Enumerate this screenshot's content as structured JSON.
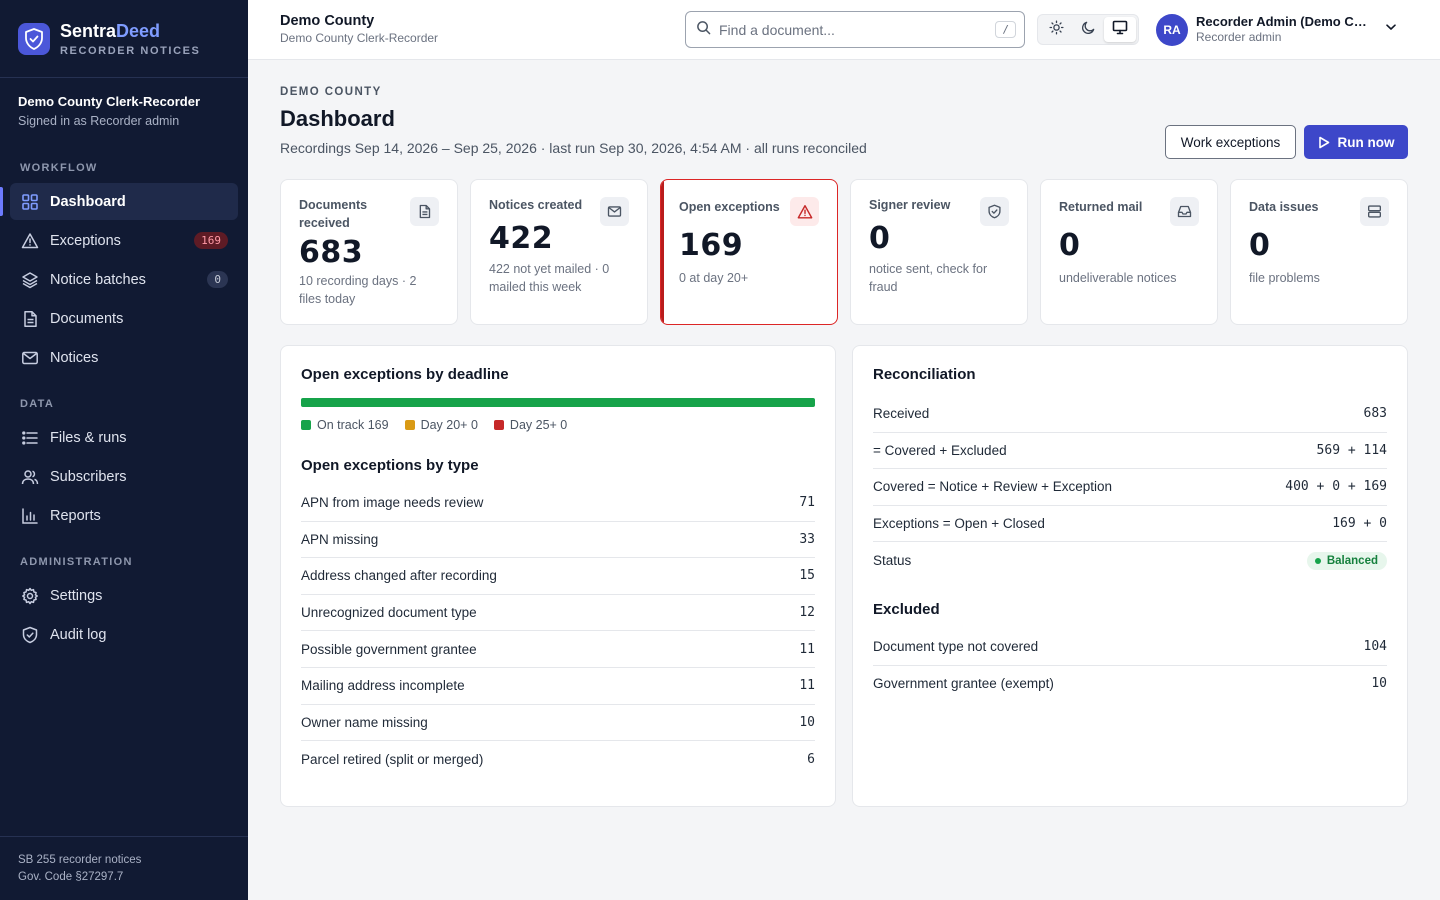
{
  "brand": {
    "name_part1": "Sentra",
    "name_part2": "Deed",
    "subtitle": "RECORDER NOTICES"
  },
  "org": {
    "name": "Demo County Clerk-Recorder",
    "signed_in": "Signed in as Recorder admin"
  },
  "nav": {
    "sections": [
      "WORKFLOW",
      "DATA",
      "ADMINISTRATION"
    ],
    "items": [
      {
        "label": "Dashboard",
        "icon": "grid-icon",
        "active": true
      },
      {
        "label": "Exceptions",
        "icon": "warning-icon",
        "badge": "169"
      },
      {
        "label": "Notice batches",
        "icon": "layers-icon",
        "badge": "0"
      },
      {
        "label": "Documents",
        "icon": "document-icon"
      },
      {
        "label": "Notices",
        "icon": "mail-icon"
      },
      {
        "label": "Files & runs",
        "icon": "list-icon"
      },
      {
        "label": "Subscribers",
        "icon": "users-icon"
      },
      {
        "label": "Reports",
        "icon": "bar-chart-icon"
      },
      {
        "label": "Settings",
        "icon": "gear-icon"
      },
      {
        "label": "Audit log",
        "icon": "shield-icon"
      }
    ]
  },
  "footer": {
    "line1": "SB 255 recorder notices",
    "line2": "Gov. Code §27297.7"
  },
  "topbar": {
    "title": "Demo County",
    "subtitle": "Demo County Clerk-Recorder",
    "search_placeholder": "Find a document...",
    "search_shortcut": "/",
    "user_initials": "RA",
    "user_name": "Recorder Admin (Demo County)",
    "user_role": "Recorder admin"
  },
  "page": {
    "eyebrow": "DEMO COUNTY",
    "title": "Dashboard",
    "subtitle": "Recordings Sep 14, 2026 – Sep 25, 2026 · last run Sep 30, 2026, 4:54 AM · all runs reconciled",
    "btn_secondary": "Work exceptions",
    "btn_primary": "Run now"
  },
  "stats": [
    {
      "label": "Documents received",
      "value": "683",
      "desc": "10 recording days · 2 files today",
      "icon": "document-icon"
    },
    {
      "label": "Notices created",
      "value": "422",
      "desc": "422 not yet mailed · 0 mailed this week",
      "icon": "mail-icon"
    },
    {
      "label": "Open exceptions",
      "value": "169",
      "desc": "0 at day 20+",
      "icon": "warning-icon",
      "alert": true
    },
    {
      "label": "Signer review",
      "value": "0",
      "desc": "notice sent, check for fraud",
      "icon": "shield-icon"
    },
    {
      "label": "Returned mail",
      "value": "0",
      "desc": "undeliverable notices",
      "icon": "inbox-icon"
    },
    {
      "label": "Data issues",
      "value": "0",
      "desc": "file problems",
      "icon": "database-icon"
    }
  ],
  "deadline": {
    "title": "Open exceptions by deadline",
    "segments": [
      {
        "label": "On track",
        "value": 169,
        "color": "#16a34a"
      },
      {
        "label": "Day 20+",
        "value": 0,
        "color": "#d99a15"
      },
      {
        "label": "Day 25+",
        "value": 0,
        "color": "#c62828"
      }
    ],
    "legend_texts": [
      "On track 169",
      "Day 20+ 0",
      "Day 25+ 0"
    ]
  },
  "by_type": {
    "title": "Open exceptions by type",
    "rows": [
      {
        "label": "APN from image needs review",
        "value": "71"
      },
      {
        "label": "APN missing",
        "value": "33"
      },
      {
        "label": "Address changed after recording",
        "value": "15"
      },
      {
        "label": "Unrecognized document type",
        "value": "12"
      },
      {
        "label": "Possible government grantee",
        "value": "11"
      },
      {
        "label": "Mailing address incomplete",
        "value": "11"
      },
      {
        "label": "Owner name missing",
        "value": "10"
      },
      {
        "label": "Parcel retired (split or merged)",
        "value": "6"
      }
    ]
  },
  "reconciliation": {
    "title": "Reconciliation",
    "rows": [
      {
        "label": "Received",
        "value": "683"
      },
      {
        "label": "= Covered + Excluded",
        "value": "569 + 114"
      },
      {
        "label": "Covered = Notice + Review + Exception",
        "value": "400 + 0 + 169"
      },
      {
        "label": "Exceptions = Open + Closed",
        "value": "169 + 0"
      }
    ],
    "status_label": "Status",
    "status_value": "Balanced"
  },
  "excluded": {
    "title": "Excluded",
    "rows": [
      {
        "label": "Document type not covered",
        "value": "104"
      },
      {
        "label": "Government grantee (exempt)",
        "value": "10"
      }
    ]
  }
}
